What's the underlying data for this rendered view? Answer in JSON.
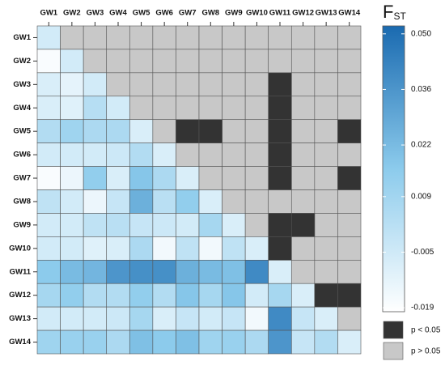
{
  "chart_data": {
    "type": "heatmap",
    "categories": [
      "GW1",
      "GW2",
      "GW3",
      "GW4",
      "GW5",
      "GW6",
      "GW7",
      "GW8",
      "GW9",
      "GW10",
      "GW11",
      "GW12",
      "GW13",
      "GW14"
    ],
    "values": [
      [
        -0.006
      ],
      [
        -0.018,
        -0.006
      ],
      [
        -0.008,
        -0.012,
        -0.006
      ],
      [
        -0.008,
        -0.01,
        0.003,
        -0.006
      ],
      [
        0.004,
        0.01,
        0.006,
        0.006,
        -0.008
      ],
      [
        -0.006,
        -0.006,
        -0.006,
        -0.004,
        0.004,
        -0.008
      ],
      [
        -0.018,
        -0.014,
        0.014,
        -0.008,
        0.018,
        0.006,
        -0.008
      ],
      [
        0.0,
        -0.006,
        -0.014,
        -0.002,
        0.026,
        0.002,
        0.014,
        -0.008
      ],
      [
        -0.006,
        -0.006,
        0.0,
        0.002,
        -0.002,
        -0.004,
        -0.006,
        0.008,
        -0.008
      ],
      [
        -0.006,
        -0.006,
        -0.01,
        -0.008,
        0.006,
        -0.016,
        0.0,
        -0.016,
        0.0,
        -0.008
      ],
      [
        0.016,
        0.022,
        0.024,
        0.036,
        0.038,
        0.038,
        0.026,
        0.022,
        0.02,
        0.04,
        -0.008
      ],
      [
        0.008,
        0.014,
        0.004,
        0.004,
        0.014,
        0.004,
        0.018,
        0.008,
        0.018,
        -0.006,
        0.008,
        -0.008
      ],
      [
        -0.006,
        -0.006,
        -0.006,
        -0.004,
        0.008,
        -0.008,
        -0.002,
        -0.006,
        -0.002,
        -0.016,
        0.04,
        -0.002,
        -0.008
      ],
      [
        0.01,
        0.012,
        0.012,
        0.006,
        0.02,
        0.016,
        0.02,
        0.01,
        0.012,
        0.006,
        0.036,
        -0.002,
        0.004,
        -0.008
      ]
    ],
    "significant": [
      [
        2,
        10
      ],
      [
        3,
        10
      ],
      [
        4,
        6
      ],
      [
        4,
        7
      ],
      [
        4,
        10
      ],
      [
        4,
        13
      ],
      [
        5,
        10
      ],
      [
        6,
        10
      ],
      [
        6,
        13
      ],
      [
        8,
        10
      ],
      [
        8,
        11
      ],
      [
        9,
        10
      ],
      [
        11,
        12
      ],
      [
        11,
        13
      ]
    ],
    "colors": [
      "#ffffff",
      "#8ccbec",
      "#1a6ab0"
    ],
    "clim": [
      -0.02,
      0.052
    ],
    "cticks": [
      {
        "value": 0.05,
        "label": "0.050"
      },
      0.036,
      0.022,
      0.009,
      -0.005,
      -0.019
    ],
    "colorbar_title": {
      "main": "F",
      "sub": "ST"
    },
    "legend": [
      {
        "name": "p < 0.05",
        "color": "#333333"
      },
      {
        "name": "p > 0.05",
        "color": "#c8c8c8"
      }
    ]
  }
}
